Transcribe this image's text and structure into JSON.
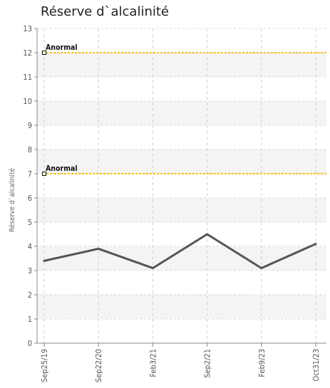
{
  "chart_data": {
    "type": "line",
    "title": "Réserve d`alcalinité",
    "xlabel": "",
    "ylabel": "Réserve d`alcalinité",
    "categories": [
      "Sep25/19",
      "Sep22/20",
      "Feb3/21",
      "Sep2/21",
      "Feb9/23",
      "Oct31/23"
    ],
    "series": [
      {
        "name": "",
        "values": [
          3.4,
          3.9,
          3.1,
          4.5,
          3.1,
          4.1
        ],
        "color": "#555555"
      }
    ],
    "reference_lines": [
      {
        "label": "Anormal",
        "value": 12,
        "color": "#f0c419"
      },
      {
        "label": "Anormal",
        "value": 7,
        "color": "#f0c419"
      }
    ],
    "yticks": [
      0,
      1,
      2,
      3,
      4,
      5,
      6,
      7,
      8,
      9,
      10,
      11,
      12,
      13
    ],
    "ylim": [
      0,
      13
    ],
    "grid": true,
    "band_colors": [
      "#ffffff",
      "#f4f4f4"
    ]
  }
}
